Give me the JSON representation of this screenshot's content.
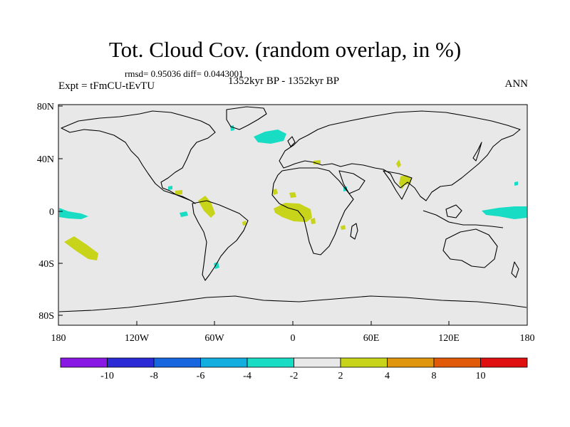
{
  "title": "Tot. Cloud Cov. (random overlap, in %)",
  "stats": "rmsd= 0.95036 diff= 0.0443001",
  "expt": "Expt = tFmCU-tEvTU",
  "period": "1352kyr BP - 1352kyr BP",
  "season": "ANN",
  "lat_labels": [
    "80N",
    "40N",
    "0",
    "40S",
    "80S"
  ],
  "lon_labels": [
    "180",
    "120W",
    "60W",
    "0",
    "60E",
    "120E",
    "180"
  ],
  "colorbar": {
    "labels": [
      "-10",
      "-8",
      "-6",
      "-4",
      "-2",
      "2",
      "4",
      "8",
      "10"
    ],
    "colors": [
      "#8a18e4",
      "#2a2ad6",
      "#1666e0",
      "#12aee0",
      "#19dcc4",
      "#e8e8e8",
      "#c8d41a",
      "#e0960c",
      "#e05a08",
      "#e01010"
    ]
  },
  "colors": {
    "ocean_land_fill": "#e8e8e8",
    "positive_anomaly": "#c8d41a",
    "negative_anomaly": "#19dcc4",
    "coast": "#000000"
  }
}
